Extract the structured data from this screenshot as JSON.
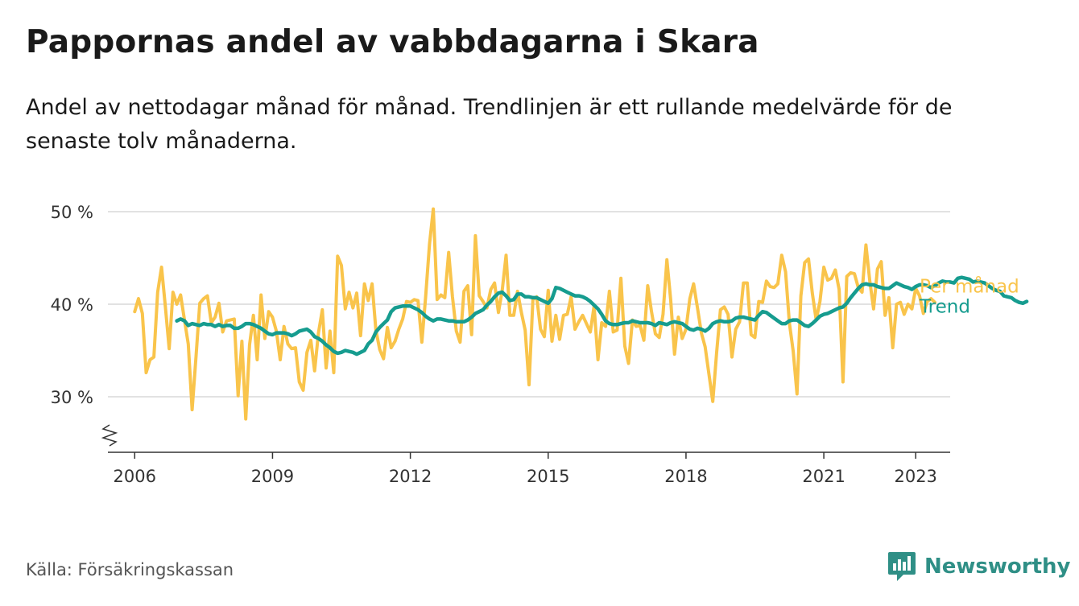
{
  "title": "Pappornas andel av vabbdagarna i Skara",
  "subtitle": "Andel av nettodagar månad för månad. Trendlinjen är ett rullande medelvärde för de senaste tolv månaderna.",
  "source": "Källa: Försäkringskassan",
  "brand": {
    "name": "Newsworthy",
    "icon": "newsworthy-logo-icon",
    "color": "#2f8f86"
  },
  "colors": {
    "monthly": "#f9c44b",
    "trend": "#169c8f",
    "grid": "#d9d9d9",
    "axis": "#333333"
  },
  "chart_data": {
    "type": "line",
    "title": "Pappornas andel av vabbdagarna i Skara",
    "xlabel": "",
    "ylabel": "",
    "x_ticks": [
      "2006",
      "2009",
      "2012",
      "2015",
      "2018",
      "2021",
      "2023"
    ],
    "y_ticks": [
      "30 %",
      "40 %",
      "50 %"
    ],
    "ylim": [
      24,
      52
    ],
    "xlim": [
      "2005-06",
      "2023-10"
    ],
    "grid": "horizontal",
    "axis_break": true,
    "legend_placement": "right, at line ends",
    "series": [
      {
        "name": "Per månad",
        "color": "#f9c44b",
        "start": "2006-01",
        "values": [
          39.2,
          40.6,
          39.0,
          32.6,
          34.0,
          34.3,
          41.3,
          44.0,
          39.8,
          35.2,
          41.3,
          40.0,
          41.0,
          38.3,
          35.7,
          28.6,
          34.3,
          40.1,
          40.6,
          40.9,
          38.0,
          38.6,
          40.1,
          37.0,
          38.2,
          38.3,
          38.4,
          30.1,
          36.0,
          27.6,
          35.6,
          38.8,
          34.0,
          41.0,
          36.3,
          39.2,
          38.6,
          37.1,
          34.0,
          37.6,
          35.7,
          35.2,
          35.3,
          31.6,
          30.7,
          34.8,
          36.1,
          32.8,
          36.9,
          39.4,
          33.1,
          37.1,
          32.6,
          45.2,
          44.2,
          39.5,
          41.3,
          39.6,
          41.2,
          36.6,
          42.2,
          40.4,
          42.2,
          37.2,
          35.1,
          34.1,
          37.5,
          35.3,
          36.0,
          37.3,
          38.4,
          40.3,
          40.2,
          40.5,
          40.4,
          35.9,
          40.8,
          46.5,
          50.3,
          40.5,
          41.0,
          40.7,
          45.6,
          40.8,
          37.1,
          35.9,
          41.4,
          42.0,
          36.7,
          47.4,
          40.9,
          40.3,
          39.6,
          41.6,
          42.3,
          39.1,
          41.5,
          45.3,
          38.8,
          38.8,
          41.4,
          39.1,
          37.2,
          31.3,
          40.5,
          40.8,
          37.3,
          36.5,
          41.5,
          36.0,
          38.8,
          36.2,
          38.8,
          38.9,
          40.8,
          37.3,
          38.1,
          38.8,
          37.9,
          37.0,
          39.8,
          34.0,
          38.0,
          37.6,
          41.4,
          37.0,
          37.2,
          42.8,
          35.5,
          33.6,
          38.3,
          37.6,
          37.7,
          36.1,
          42.0,
          39.2,
          36.8,
          36.4,
          38.9,
          44.8,
          40.5,
          34.6,
          38.6,
          36.3,
          37.3,
          40.6,
          42.2,
          39.6,
          36.9,
          35.4,
          32.4,
          29.5,
          34.8,
          39.4,
          39.7,
          38.9,
          34.3,
          37.3,
          38.1,
          42.3,
          42.3,
          36.7,
          36.4,
          40.3,
          40.2,
          42.5,
          41.9,
          41.8,
          42.2,
          45.3,
          43.5,
          38.0,
          34.9,
          30.3,
          40.9,
          44.5,
          44.9,
          41.2,
          38.3,
          40.3,
          44.0,
          42.6,
          42.8,
          43.7,
          41.6,
          31.6,
          43.0,
          43.4,
          43.3,
          41.8,
          41.3,
          46.4,
          42.5,
          39.5,
          43.8,
          44.6,
          38.8,
          40.7,
          35.3,
          40.0,
          40.2,
          38.9,
          40.0,
          39.5,
          41.7,
          40.9,
          39.0,
          40.3,
          40.6,
          40.2
        ]
      },
      {
        "name": "Trend",
        "color": "#169c8f",
        "start": "2006-12",
        "values": [
          38.2,
          38.4,
          38.2,
          37.7,
          37.9,
          37.8,
          37.7,
          37.9,
          37.8,
          37.8,
          37.6,
          37.8,
          37.6,
          37.7,
          37.7,
          37.4,
          37.4,
          37.6,
          37.9,
          37.9,
          37.8,
          37.6,
          37.4,
          37.1,
          36.8,
          36.7,
          36.9,
          36.9,
          36.9,
          36.8,
          36.6,
          36.8,
          37.1,
          37.2,
          37.3,
          37.0,
          36.5,
          36.3,
          36.0,
          35.6,
          35.3,
          34.9,
          34.7,
          34.8,
          35.0,
          34.9,
          34.8,
          34.6,
          34.8,
          35.0,
          35.7,
          36.1,
          37.0,
          37.5,
          37.9,
          38.3,
          39.2,
          39.6,
          39.7,
          39.8,
          39.8,
          39.8,
          39.6,
          39.4,
          39.1,
          38.7,
          38.4,
          38.2,
          38.4,
          38.4,
          38.3,
          38.2,
          38.2,
          38.1,
          38.1,
          38.1,
          38.3,
          38.6,
          39.0,
          39.2,
          39.4,
          39.9,
          40.3,
          40.8,
          41.2,
          41.3,
          40.9,
          40.4,
          40.5,
          41.1,
          41.1,
          40.8,
          40.8,
          40.7,
          40.7,
          40.5,
          40.3,
          40.1,
          40.6,
          41.8,
          41.7,
          41.5,
          41.3,
          41.1,
          40.9,
          40.9,
          40.8,
          40.6,
          40.3,
          39.9,
          39.5,
          38.9,
          38.2,
          37.9,
          37.8,
          37.8,
          37.9,
          38.0,
          38.0,
          38.2,
          38.1,
          38.0,
          38.0,
          38.0,
          37.9,
          37.7,
          38.0,
          37.9,
          37.8,
          38.0,
          38.1,
          38.0,
          37.9,
          37.6,
          37.3,
          37.2,
          37.4,
          37.3,
          37.1,
          37.4,
          37.9,
          38.1,
          38.2,
          38.1,
          38.1,
          38.2,
          38.5,
          38.6,
          38.6,
          38.5,
          38.4,
          38.3,
          38.8,
          39.2,
          39.1,
          38.8,
          38.5,
          38.2,
          37.9,
          37.9,
          38.2,
          38.3,
          38.3,
          38.0,
          37.7,
          37.6,
          37.9,
          38.3,
          38.7,
          38.9,
          39.0,
          39.2,
          39.4,
          39.6,
          39.7,
          40.1,
          40.7,
          41.2,
          41.7,
          42.1,
          42.2,
          42.1,
          42.1,
          41.9,
          41.8,
          41.7,
          41.7,
          42.0,
          42.3,
          42.1,
          41.9,
          41.8,
          41.6,
          41.9,
          42.1,
          42.1,
          42.0,
          41.8,
          42.0,
          42.3,
          42.5,
          42.4,
          42.4,
          42.3,
          42.8,
          42.9,
          42.8,
          42.7,
          42.4,
          42.5,
          42.4,
          42.3,
          42.0,
          41.7,
          41.5,
          41.4,
          40.9,
          40.8,
          40.7,
          40.4,
          40.2,
          40.1,
          40.3
        ]
      }
    ]
  }
}
